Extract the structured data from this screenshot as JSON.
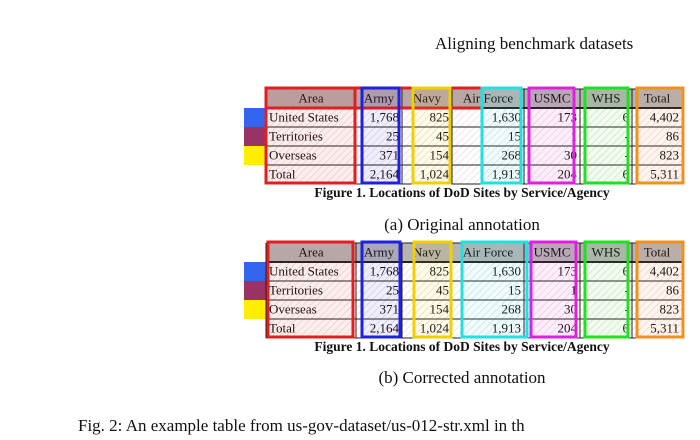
{
  "header": {
    "running_title": "Aligning benchmark datasets"
  },
  "panels": [
    {
      "table": {
        "header": [
          "Area",
          "Army",
          "Navy",
          "Air Force",
          "USMC",
          "WHS",
          "Total"
        ],
        "rows": [
          [
            "United States",
            "1,768",
            "825",
            "1,630",
            "173",
            "6",
            "4,402"
          ],
          [
            "Territories",
            "25",
            "45",
            "15",
            "1",
            "-",
            "86"
          ],
          [
            "Overseas",
            "371",
            "154",
            "268",
            "30",
            "-",
            "823"
          ],
          [
            "Total",
            "2,164",
            "1,024",
            "1,913",
            "204",
            "6",
            "5,311"
          ]
        ]
      },
      "table_caption": "Figure 1.  Locations of DoD Sites by Service/Agency",
      "subcaption": "(a) Original annotation"
    },
    {
      "table": {
        "header": [
          "Area",
          "Army",
          "Navy",
          "Air Force",
          "USMC",
          "WHS",
          "Total"
        ],
        "rows": [
          [
            "United States",
            "1,768",
            "825",
            "1,630",
            "173",
            "6",
            "4,402"
          ],
          [
            "Territories",
            "25",
            "45",
            "15",
            "1",
            "-",
            "86"
          ],
          [
            "Overseas",
            "371",
            "154",
            "268",
            "30",
            "-",
            "823"
          ],
          [
            "Total",
            "2,164",
            "1,024",
            "1,913",
            "204",
            "6",
            "5,311"
          ]
        ]
      },
      "table_caption": "Figure 1.  Locations of DoD Sites by Service/Agency",
      "subcaption": "(b) Corrected annotation"
    }
  ],
  "caption": "Fig. 2: An example table from us-gov-dataset/us-012-str.xml in th"
}
